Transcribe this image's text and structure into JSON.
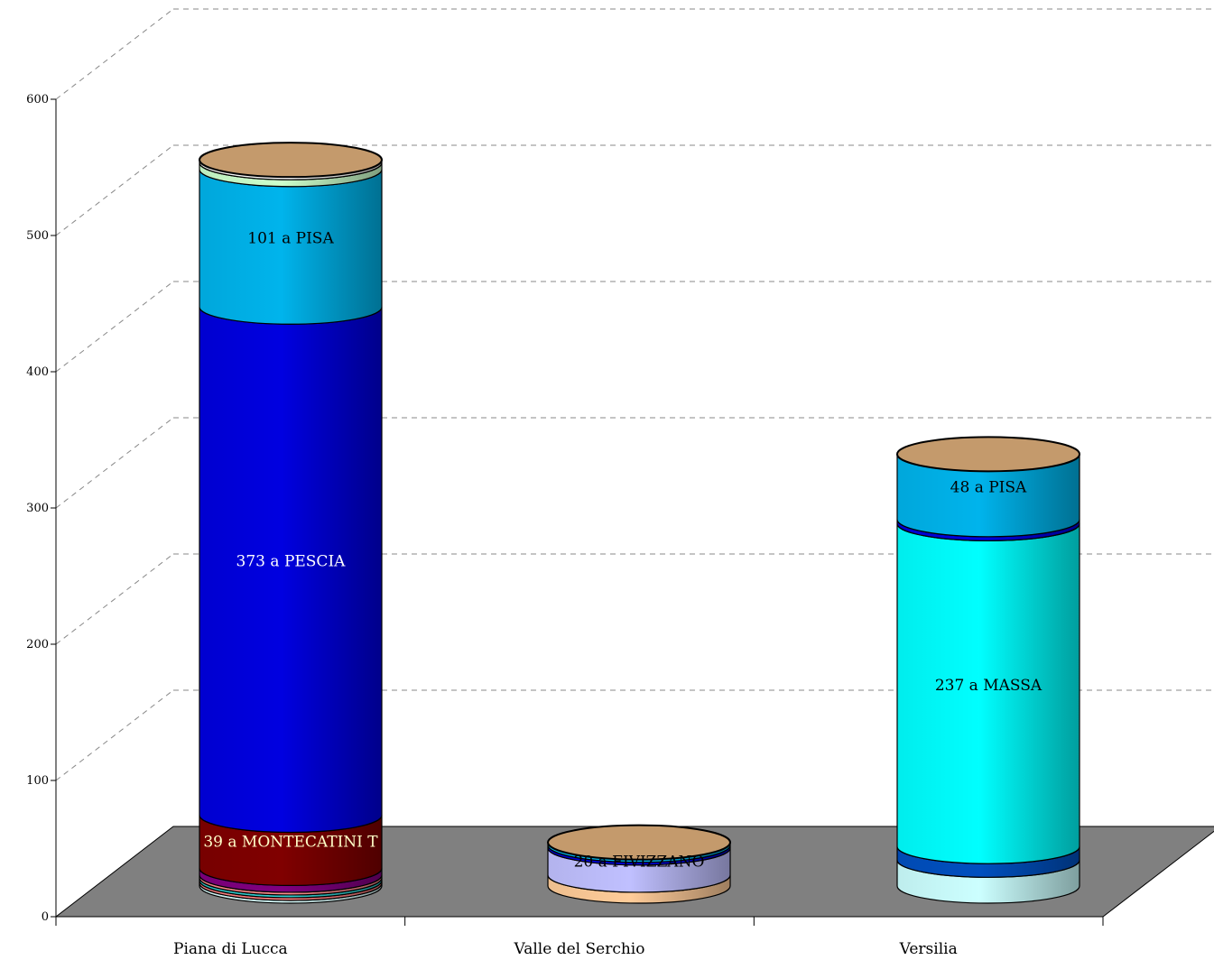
{
  "chart_data": {
    "type": "bar",
    "stacked": true,
    "style": "3d-cylinder",
    "categories": [
      "Piana di Lucca",
      "Valle del Serchio",
      "Versilia"
    ],
    "ylim": [
      0,
      600
    ],
    "yticks": [
      0,
      100,
      200,
      300,
      400,
      500,
      600
    ],
    "grid": true,
    "legend": "none",
    "bars": [
      {
        "category": "Piana di Lucca",
        "segments": [
          {
            "value": 2,
            "color": "#d8fafa"
          },
          {
            "value": 2,
            "color": "#ff8080"
          },
          {
            "value": 2,
            "color": "#30d0d0"
          },
          {
            "value": 2,
            "color": "#ff8c8c"
          },
          {
            "value": 5,
            "color": "#800080"
          },
          {
            "value": 39,
            "color": "#800000",
            "label": "39 a MONTECATINI T",
            "label_color": "#ffffc8"
          },
          {
            "value": 373,
            "color": "#0000e0",
            "label": "373 a PESCIA",
            "label_color": "#ffffff"
          },
          {
            "value": 101,
            "color": "#00b4ec",
            "label": "101 a PISA",
            "label_color": "#000000"
          },
          {
            "value": 5,
            "color": "#ccffcc"
          },
          {
            "value": 2,
            "color": "#ffffff"
          }
        ]
      },
      {
        "category": "Valle del Serchio",
        "segments": [
          {
            "value": 8,
            "color": "#ffcc99"
          },
          {
            "value": 20,
            "color": "#c0c0ff",
            "label": "20 a FIVIZZANO",
            "label_color": "#000000"
          },
          {
            "value": 2,
            "color": "#0000e0"
          },
          {
            "value": 2,
            "color": "#00b4ec"
          }
        ]
      },
      {
        "category": "Versilia",
        "segments": [
          {
            "value": 19,
            "color": "#ccffff"
          },
          {
            "value": 10,
            "color": "#0050c0"
          },
          {
            "value": 237,
            "color": "#00ffff",
            "label": "237 a MASSA",
            "label_color": "#000000"
          },
          {
            "value": 3,
            "color": "#0000e0"
          },
          {
            "value": 48,
            "color": "#00b4ec",
            "label": "48 a PISA",
            "label_color": "#000000"
          }
        ]
      }
    ],
    "top_color": "#c49a6c",
    "floor_color": "#808080"
  }
}
